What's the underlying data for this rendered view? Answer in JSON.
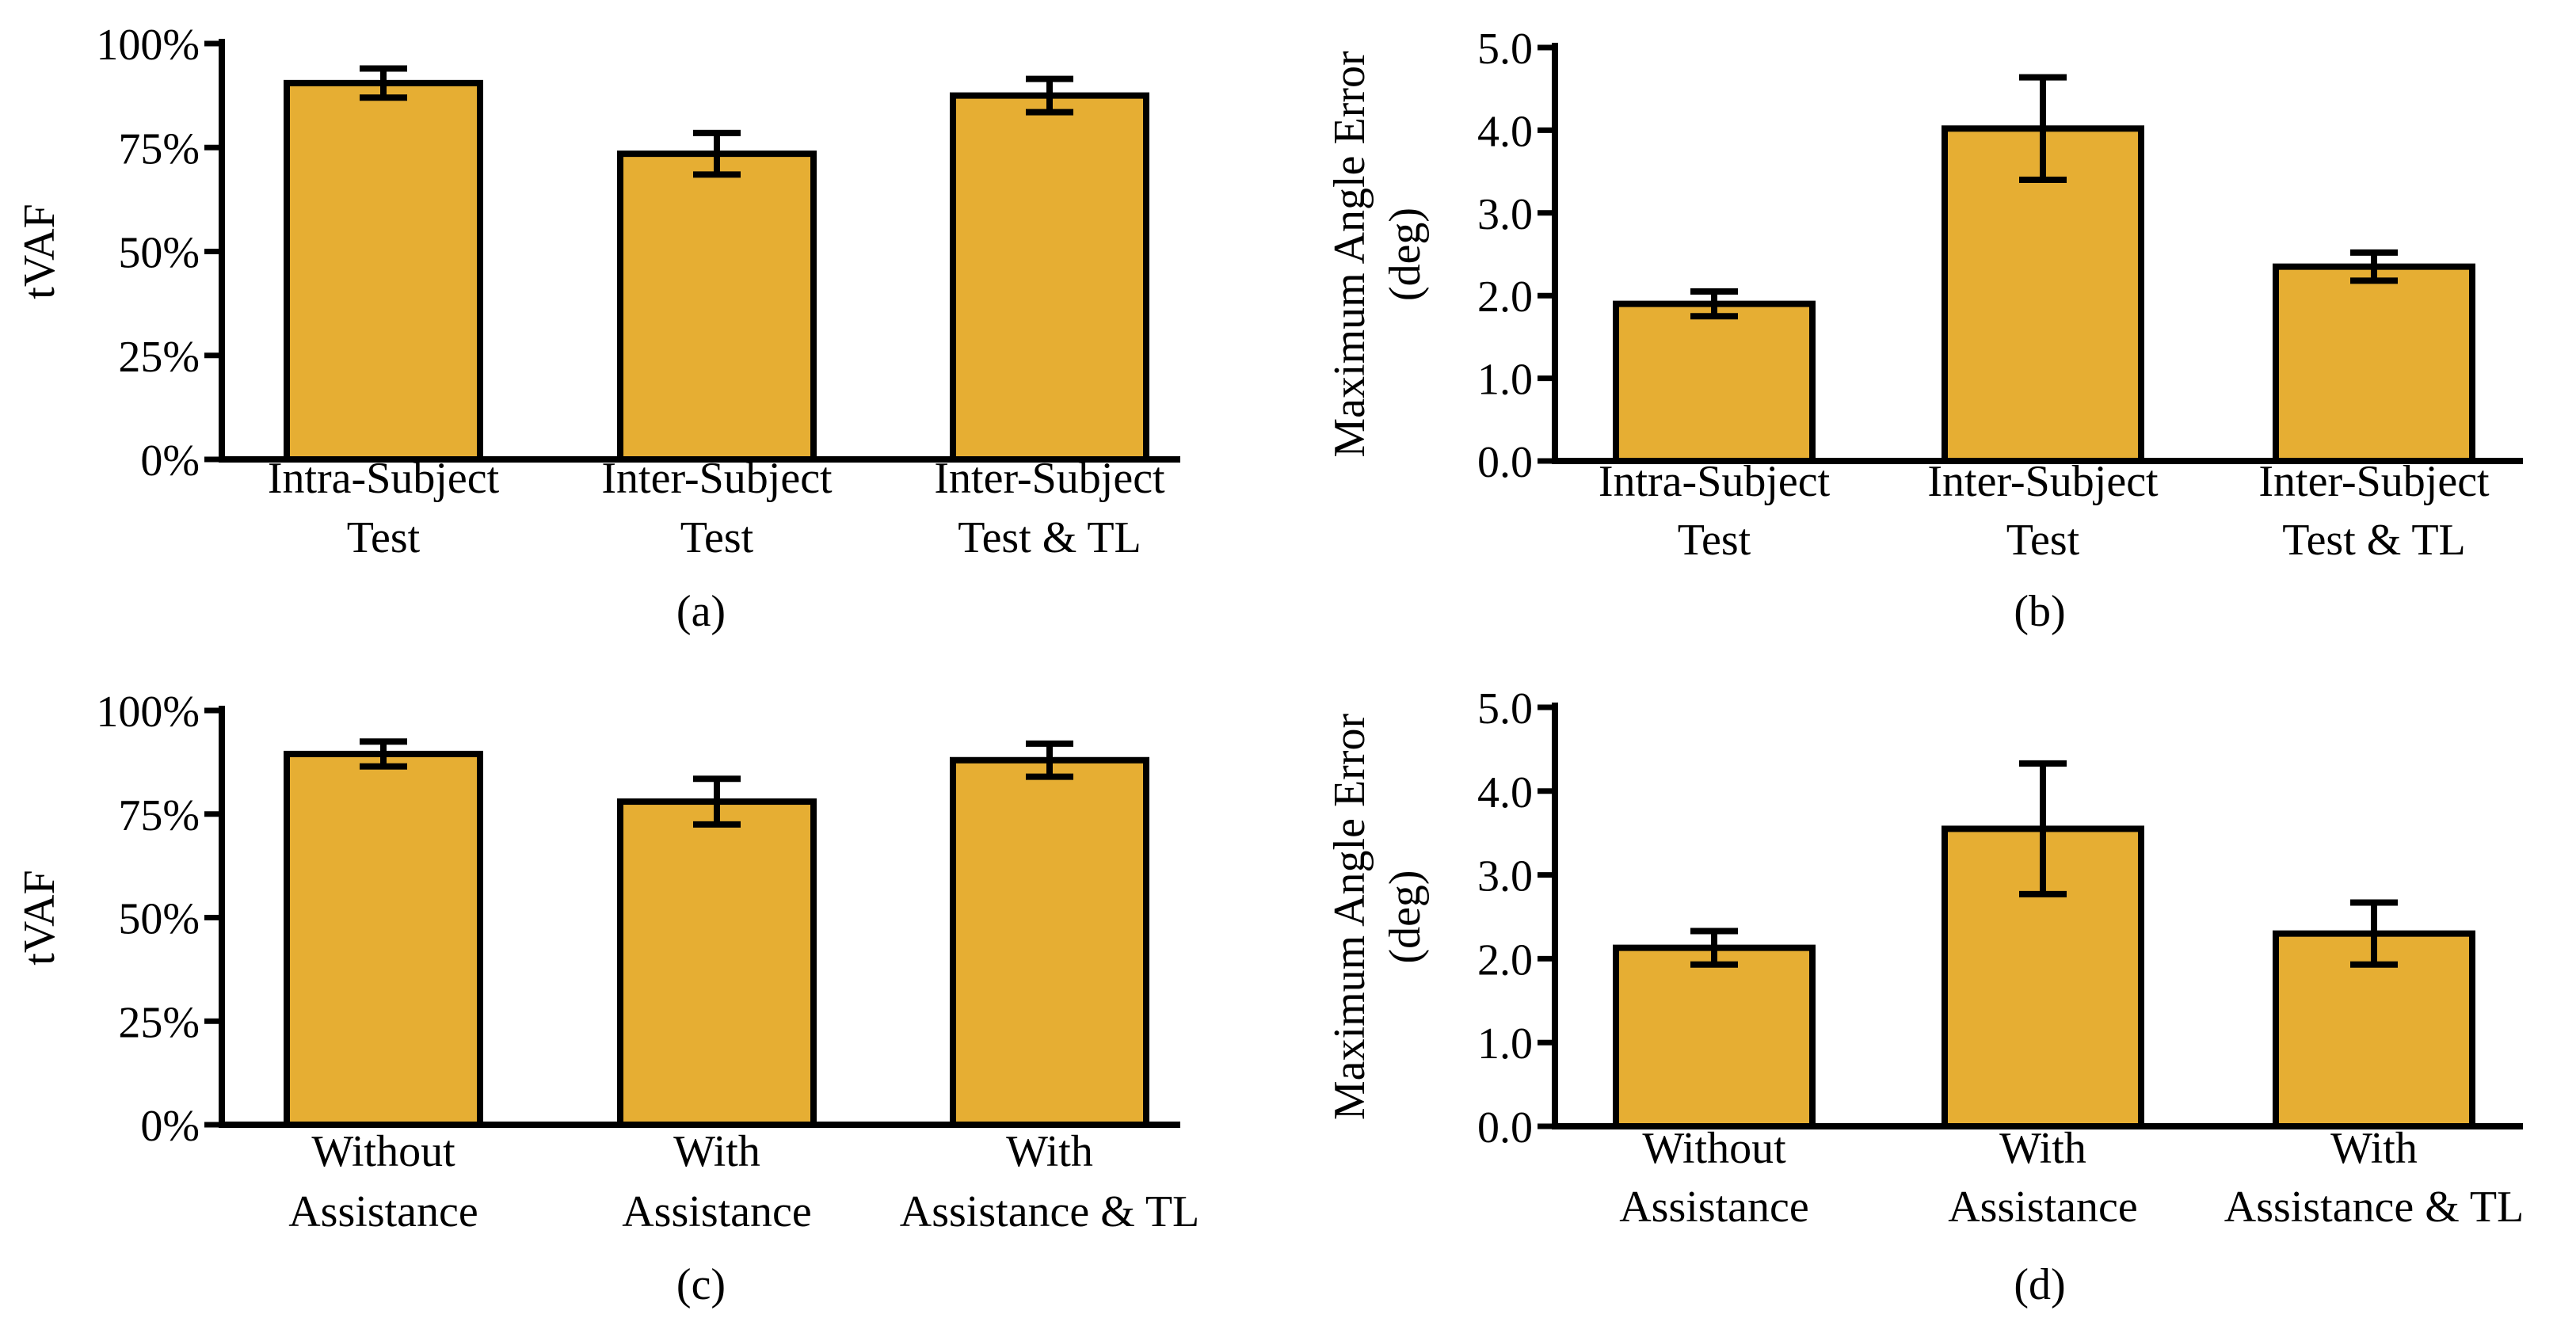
{
  "figure": {
    "bar_color": "#e6ae33",
    "stroke_color": "#000000"
  },
  "chart_data": [
    {
      "type": "bar",
      "panel_label": "(a)",
      "ylabel": "tVAF",
      "ylim": [
        0,
        100
      ],
      "y_ticks": [
        "0%",
        "25%",
        "50%",
        "75%",
        "100%"
      ],
      "y_tick_values": [
        0,
        25,
        50,
        75,
        100
      ],
      "categories": [
        [
          "Intra-Subject",
          "Test"
        ],
        [
          "Inter-Subject",
          "Test"
        ],
        [
          "Inter-Subject",
          "Test & TL"
        ]
      ],
      "values": [
        90.5,
        73.5,
        87.5
      ],
      "errors": [
        3.5,
        5.0,
        4.0
      ]
    },
    {
      "type": "bar",
      "panel_label": "(b)",
      "ylabel": [
        "Maximum Angle Error",
        "(deg)"
      ],
      "ylim": [
        0,
        5
      ],
      "y_ticks": [
        "0.0",
        "1.0",
        "2.0",
        "3.0",
        "4.0",
        "5.0"
      ],
      "y_tick_values": [
        0,
        1,
        2,
        3,
        4,
        5
      ],
      "categories": [
        [
          "Intra-Subject",
          "Test"
        ],
        [
          "Inter-Subject",
          "Test"
        ],
        [
          "Inter-Subject",
          "Test & TL"
        ]
      ],
      "values": [
        1.9,
        4.02,
        2.35
      ],
      "errors": [
        0.15,
        0.62,
        0.17
      ]
    },
    {
      "type": "bar",
      "panel_label": "(c)",
      "ylabel": "tVAF",
      "ylim": [
        0,
        100
      ],
      "y_ticks": [
        "0%",
        "25%",
        "50%",
        "75%",
        "100%"
      ],
      "y_tick_values": [
        0,
        25,
        50,
        75,
        100
      ],
      "categories": [
        [
          "Without",
          "Assistance"
        ],
        [
          "With",
          "Assistance"
        ],
        [
          "With",
          "Assistance & TL"
        ]
      ],
      "values": [
        89.5,
        78.0,
        88.0
      ],
      "errors": [
        3.0,
        5.5,
        4.0
      ]
    },
    {
      "type": "bar",
      "panel_label": "(d)",
      "ylabel": [
        "Maximum Angle Error",
        "(deg)"
      ],
      "ylim": [
        0,
        5
      ],
      "y_ticks": [
        "0.0",
        "1.0",
        "2.0",
        "3.0",
        "4.0",
        "5.0"
      ],
      "y_tick_values": [
        0,
        1,
        2,
        3,
        4,
        5
      ],
      "categories": [
        [
          "Without",
          "Assistance"
        ],
        [
          "With",
          "Assistance"
        ],
        [
          "With",
          "Assistance & TL"
        ]
      ],
      "values": [
        2.13,
        3.55,
        2.3
      ],
      "errors": [
        0.2,
        0.78,
        0.37
      ]
    }
  ]
}
